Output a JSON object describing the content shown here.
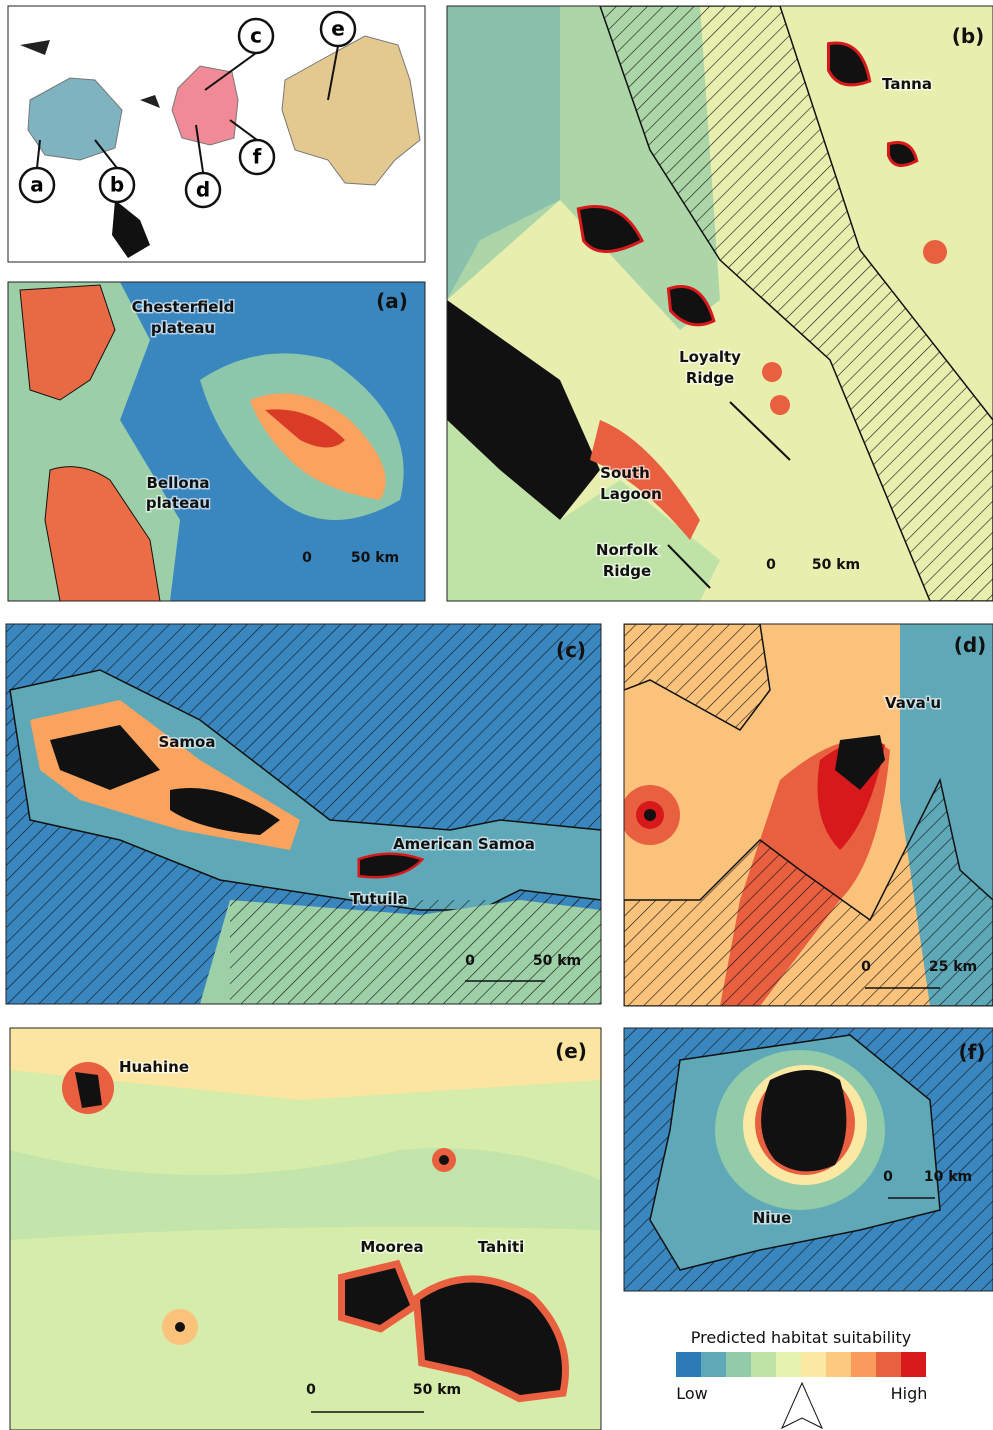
{
  "overview": {
    "labels": [
      "c",
      "e",
      "a",
      "b",
      "d",
      "f"
    ]
  },
  "panels": [
    {
      "tag": "(a)",
      "places": [
        [
          "Chesterfield",
          "plateau"
        ],
        [
          "Bellona",
          "plateau"
        ]
      ],
      "scale": [
        "0",
        "50 km"
      ]
    },
    {
      "tag": "(b)",
      "places": [
        [
          "Tanna"
        ],
        [
          "Loyalty",
          "Ridge"
        ],
        [
          "South",
          "Lagoon"
        ],
        [
          "Norfolk",
          "Ridge"
        ]
      ],
      "scale": [
        "0",
        "50 km"
      ]
    },
    {
      "tag": "(c)",
      "places": [
        [
          "Samoa"
        ],
        [
          "American Samoa"
        ],
        [
          "Tutuila"
        ]
      ],
      "scale": [
        "0",
        "50 km"
      ]
    },
    {
      "tag": "(d)",
      "places": [
        [
          "Vava'u"
        ]
      ],
      "scale": [
        "0",
        "25 km"
      ]
    },
    {
      "tag": "(e)",
      "places": [
        [
          "Huahine"
        ],
        [
          "Moorea"
        ],
        [
          "Tahiti"
        ]
      ],
      "scale": [
        "0",
        "50 km"
      ]
    },
    {
      "tag": "(f)",
      "places": [
        [
          "Niue"
        ]
      ],
      "scale": [
        "0",
        "10 km"
      ]
    }
  ],
  "legend": {
    "title": "Predicted habitat suitability",
    "low": "Low",
    "high": "High",
    "colors": [
      "#2c7bb6",
      "#5fa8b8",
      "#92cba9",
      "#bfe3a7",
      "#e5f3b0",
      "#fbe9a3",
      "#fdc980",
      "#f99b5c",
      "#e8603f",
      "#d7191c"
    ]
  }
}
